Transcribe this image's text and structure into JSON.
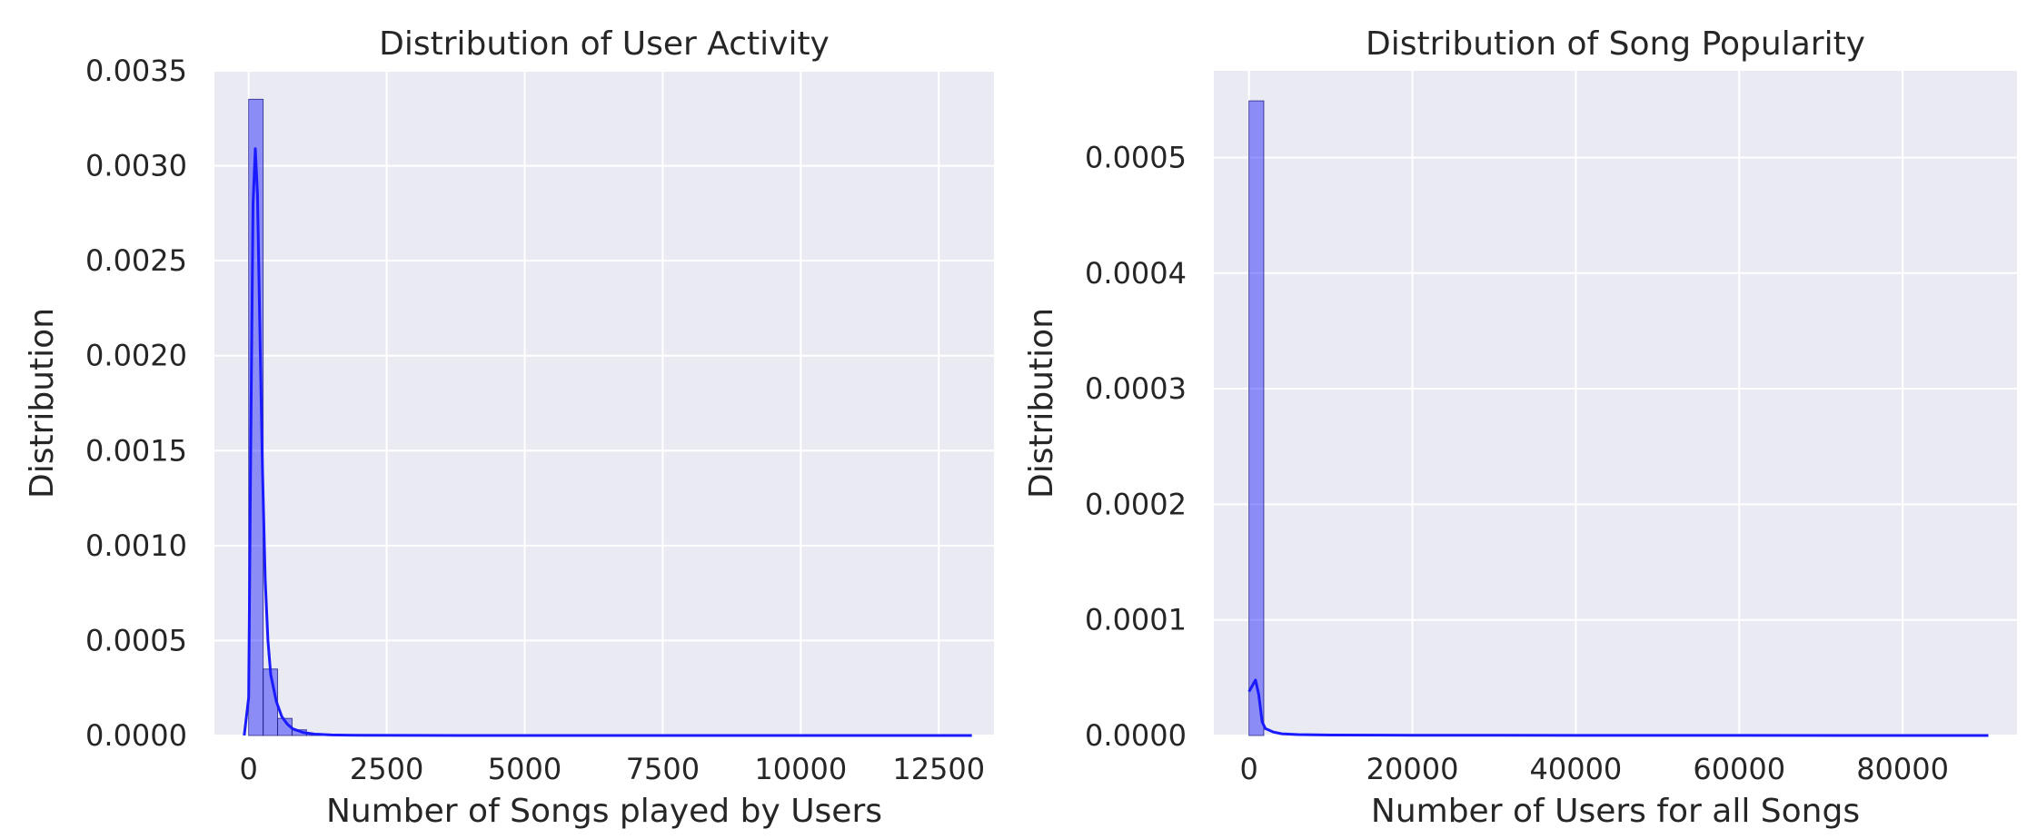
{
  "chart_data": [
    {
      "type": "histogram",
      "title": "Distribution of User Activity",
      "xlabel": "Number of Songs played by Users",
      "ylabel": "Distribution",
      "xlim": [
        -620,
        13500
      ],
      "ylim": [
        0,
        0.0035
      ],
      "xticks": [
        0,
        2500,
        5000,
        7500,
        10000,
        12500
      ],
      "xtick_labels": [
        "0",
        "2500",
        "5000",
        "7500",
        "10000",
        "12500"
      ],
      "yticks": [
        0,
        0.0005,
        0.001,
        0.0015,
        0.002,
        0.0025,
        0.003,
        0.0035
      ],
      "ytick_labels": [
        "0.0000",
        "0.0005",
        "0.0010",
        "0.0015",
        "0.0020",
        "0.0025",
        "0.0030",
        "0.0035"
      ],
      "grid": true,
      "bar_color": "#0000ff",
      "line_color": "#1a1aff",
      "bins": [
        {
          "x0": 0,
          "x1": 262,
          "value": 0.00335
        },
        {
          "x0": 262,
          "x1": 524,
          "value": 0.00035
        },
        {
          "x0": 524,
          "x1": 786,
          "value": 9e-05
        },
        {
          "x0": 786,
          "x1": 1048,
          "value": 3e-05
        },
        {
          "x0": 1048,
          "x1": 1310,
          "value": 1e-05
        }
      ],
      "kde": {
        "x": [
          -80,
          0,
          40,
          80,
          120,
          160,
          200,
          250,
          300,
          350,
          400,
          500,
          600,
          700,
          800,
          1000,
          1200,
          1500,
          2000,
          3000,
          5000,
          8000,
          13100
        ],
        "y": [
          0,
          0.0002,
          0.0016,
          0.0028,
          0.00309,
          0.00285,
          0.0022,
          0.0014,
          0.00082,
          0.0005,
          0.00032,
          0.00018,
          0.0001,
          6e-05,
          3.5e-05,
          1.5e-05,
          7e-06,
          3e-06,
          1e-06,
          5e-07,
          2e-07,
          1e-07,
          0
        ]
      }
    },
    {
      "type": "histogram",
      "title": "Distribution of Song Popularity",
      "xlabel": "Number of Users for all Songs",
      "ylabel": "Distribution",
      "xlim": [
        -4300,
        94000
      ],
      "ylim": [
        0,
        0.000575
      ],
      "xticks": [
        0,
        20000,
        40000,
        60000,
        80000
      ],
      "xtick_labels": [
        "0",
        "20000",
        "40000",
        "60000",
        "80000"
      ],
      "yticks": [
        0,
        0.0001,
        0.0002,
        0.0003,
        0.0004,
        0.0005
      ],
      "ytick_labels": [
        "0.0000",
        "0.0001",
        "0.0002",
        "0.0003",
        "0.0004",
        "0.0005"
      ],
      "grid": true,
      "bar_color": "#0000ff",
      "line_color": "#1a1aff",
      "bins": [
        {
          "x0": 0,
          "x1": 1810,
          "value": 0.000549
        }
      ],
      "kde": {
        "x": [
          0,
          400,
          800,
          1200,
          1600,
          2000,
          3000,
          4000,
          6000,
          10000,
          20000,
          40000,
          60000,
          90500
        ],
        "y": [
          3.8e-05,
          4.3e-05,
          4.8e-05,
          3.5e-05,
          1.2e-05,
          6e-06,
          3e-06,
          1.5e-06,
          8e-07,
          4e-07,
          2e-07,
          1e-07,
          5e-08,
          0
        ]
      }
    }
  ]
}
